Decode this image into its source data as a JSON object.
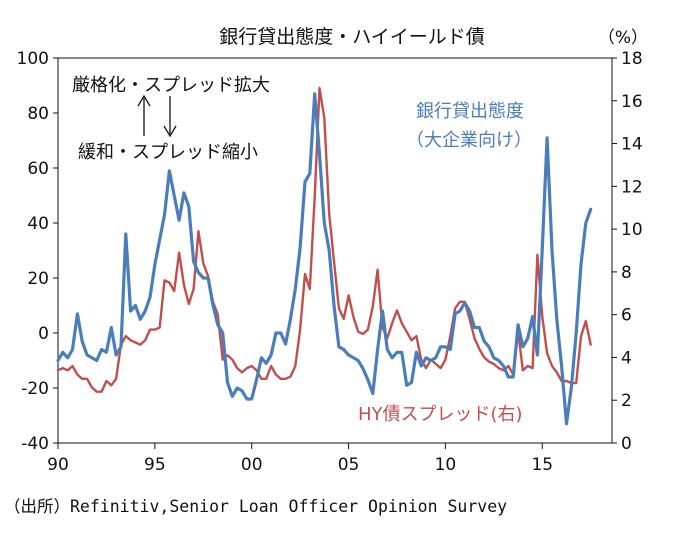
{
  "chart_data": {
    "type": "line",
    "title": "銀行貸出態度・ハイイールド債",
    "right_unit": "（%）",
    "source": "（出所）Refinitiv,Senior Loan Officer Opinion Survey",
    "x_tick_labels": [
      "90",
      "95",
      "00",
      "05",
      "10",
      "15"
    ],
    "x_ticks": [
      1990,
      1995,
      2000,
      2005,
      2010,
      2015
    ],
    "xlim": [
      1990,
      2018.6
    ],
    "y_left": {
      "lim": [
        -40,
        100
      ],
      "ticks": [
        -40,
        -20,
        0,
        20,
        40,
        60,
        80,
        100
      ]
    },
    "y_right": {
      "lim": [
        0,
        18
      ],
      "ticks": [
        0,
        2,
        4,
        6,
        8,
        10,
        12,
        14,
        16,
        18
      ]
    },
    "annotations": {
      "widen": "厳格化・スプレッド拡大",
      "narrow": "緩和・スプレッド縮小",
      "lending_label_line1": "銀行貸出態度",
      "lending_label_line2": "（大企業向け）",
      "spread_label": "HY債スプレッド(右)"
    },
    "series": [
      {
        "name": "銀行貸出態度（大企業向け）",
        "axis": "left",
        "color": "#4a7ebb",
        "points": [
          [
            1990.0,
            -10
          ],
          [
            1990.25,
            -7
          ],
          [
            1990.5,
            -9
          ],
          [
            1990.75,
            -6
          ],
          [
            1991.0,
            7
          ],
          [
            1991.25,
            -3
          ],
          [
            1991.5,
            -8
          ],
          [
            1991.75,
            -9
          ],
          [
            1992.0,
            -10
          ],
          [
            1992.25,
            -6
          ],
          [
            1992.5,
            -7
          ],
          [
            1992.75,
            2
          ],
          [
            1993.0,
            -8
          ],
          [
            1993.25,
            -5
          ],
          [
            1993.5,
            36
          ],
          [
            1993.75,
            8
          ],
          [
            1994.0,
            10
          ],
          [
            1994.25,
            5
          ],
          [
            1994.5,
            8
          ],
          [
            1994.75,
            13
          ],
          [
            1995.0,
            25
          ],
          [
            1995.25,
            34
          ],
          [
            1995.5,
            43
          ],
          [
            1995.75,
            59
          ],
          [
            1996.0,
            50
          ],
          [
            1996.25,
            41
          ],
          [
            1996.5,
            51
          ],
          [
            1996.75,
            46
          ],
          [
            1997.0,
            26
          ],
          [
            1997.25,
            22
          ],
          [
            1997.5,
            20
          ],
          [
            1997.75,
            20
          ],
          [
            1998.0,
            10
          ],
          [
            1998.25,
            3
          ],
          [
            1998.5,
            0
          ],
          [
            1998.75,
            -18
          ],
          [
            1999.0,
            -23
          ],
          [
            1999.25,
            -20
          ],
          [
            1999.5,
            -21
          ],
          [
            1999.75,
            -24
          ],
          [
            2000.0,
            -24
          ],
          [
            2000.25,
            -17
          ],
          [
            2000.5,
            -9
          ],
          [
            2000.75,
            -11
          ],
          [
            2001.0,
            -8
          ],
          [
            2001.25,
            0
          ],
          [
            2001.5,
            0
          ],
          [
            2001.75,
            -4
          ],
          [
            2002.0,
            5
          ],
          [
            2002.25,
            16
          ],
          [
            2002.5,
            31
          ],
          [
            2002.75,
            55
          ],
          [
            2003.0,
            58
          ],
          [
            2003.25,
            87
          ],
          [
            2003.5,
            65
          ],
          [
            2003.75,
            40
          ],
          [
            2004.0,
            30
          ],
          [
            2004.25,
            10
          ],
          [
            2004.5,
            -5
          ],
          [
            2004.75,
            -6
          ],
          [
            2005.0,
            -8
          ],
          [
            2005.25,
            -9
          ],
          [
            2005.5,
            -10
          ],
          [
            2005.75,
            -13
          ],
          [
            2006.0,
            -17
          ],
          [
            2006.25,
            -22
          ],
          [
            2006.5,
            -6
          ],
          [
            2006.75,
            8
          ],
          [
            2007.0,
            -6
          ],
          [
            2007.25,
            -9
          ],
          [
            2007.5,
            -7
          ],
          [
            2007.75,
            -7
          ],
          [
            2008.0,
            -19
          ],
          [
            2008.25,
            -18
          ],
          [
            2008.5,
            -7
          ],
          [
            2008.75,
            -12
          ],
          [
            2009.0,
            -9
          ],
          [
            2009.25,
            -10
          ],
          [
            2009.5,
            -9
          ],
          [
            2009.75,
            -5
          ],
          [
            2010.0,
            -5
          ],
          [
            2010.25,
            -6
          ],
          [
            2010.5,
            7
          ],
          [
            2010.75,
            8
          ],
          [
            2011.0,
            11
          ],
          [
            2011.25,
            8
          ],
          [
            2011.5,
            2
          ],
          [
            2011.75,
            2
          ],
          [
            2012.0,
            -3
          ],
          [
            2012.25,
            -5
          ],
          [
            2012.5,
            -9
          ],
          [
            2012.75,
            -10
          ],
          [
            2013.0,
            -12
          ],
          [
            2013.25,
            -16
          ],
          [
            2013.5,
            -16
          ],
          [
            2013.75,
            3
          ],
          [
            2014.0,
            -5
          ],
          [
            2014.25,
            -2
          ],
          [
            2014.5,
            6
          ],
          [
            2014.75,
            -8
          ],
          [
            2015.0,
            31
          ],
          [
            2015.25,
            71
          ],
          [
            2015.5,
            30
          ],
          [
            2015.75,
            5
          ],
          [
            2016.0,
            -12
          ],
          [
            2016.25,
            -33
          ],
          [
            2016.5,
            -20
          ],
          [
            2016.75,
            0
          ],
          [
            2017.0,
            25
          ],
          [
            2017.25,
            40
          ],
          [
            2017.5,
            45
          ]
        ]
      },
      {
        "name": "HY債スプレッド(右)",
        "axis": "right",
        "color": "#c0504d",
        "points": [
          [
            1990.0,
            3.4
          ],
          [
            1990.25,
            3.5
          ],
          [
            1990.5,
            3.4
          ],
          [
            1990.75,
            3.6
          ],
          [
            1991.0,
            3.2
          ],
          [
            1991.25,
            3.0
          ],
          [
            1991.5,
            3.0
          ],
          [
            1991.75,
            2.6
          ],
          [
            1992.0,
            2.4
          ],
          [
            1992.25,
            2.4
          ],
          [
            1992.5,
            2.9
          ],
          [
            1992.75,
            2.7
          ],
          [
            1993.0,
            3.0
          ],
          [
            1993.25,
            4.6
          ],
          [
            1993.5,
            5.0
          ],
          [
            1993.75,
            4.8
          ],
          [
            1994.0,
            4.7
          ],
          [
            1994.25,
            4.6
          ],
          [
            1994.5,
            4.8
          ],
          [
            1994.75,
            5.3
          ],
          [
            1995.0,
            5.3
          ],
          [
            1995.25,
            5.4
          ],
          [
            1995.5,
            7.6
          ],
          [
            1995.75,
            7.5
          ],
          [
            1996.0,
            7.1
          ],
          [
            1996.25,
            8.9
          ],
          [
            1996.5,
            7.4
          ],
          [
            1996.75,
            6.5
          ],
          [
            1997.0,
            7.2
          ],
          [
            1997.25,
            9.9
          ],
          [
            1997.5,
            8.4
          ],
          [
            1997.75,
            7.8
          ],
          [
            1998.0,
            6.6
          ],
          [
            1998.25,
            6.0
          ],
          [
            1998.5,
            3.9
          ],
          [
            1998.75,
            4.1
          ],
          [
            1999.0,
            3.9
          ],
          [
            1999.25,
            3.5
          ],
          [
            1999.5,
            3.3
          ],
          [
            1999.75,
            3.5
          ],
          [
            2000.0,
            3.6
          ],
          [
            2000.25,
            3.4
          ],
          [
            2000.5,
            3.0
          ],
          [
            2000.75,
            3.0
          ],
          [
            2001.0,
            3.6
          ],
          [
            2001.25,
            3.2
          ],
          [
            2001.5,
            3.0
          ],
          [
            2001.75,
            3.0
          ],
          [
            2002.0,
            3.1
          ],
          [
            2002.25,
            3.6
          ],
          [
            2002.5,
            5.3
          ],
          [
            2002.75,
            7.9
          ],
          [
            2003.0,
            7.2
          ],
          [
            2003.25,
            11.5
          ],
          [
            2003.5,
            16.6
          ],
          [
            2003.75,
            15.2
          ],
          [
            2004.0,
            10.7
          ],
          [
            2004.25,
            8.5
          ],
          [
            2004.5,
            6.3
          ],
          [
            2004.75,
            5.8
          ],
          [
            2005.0,
            6.9
          ],
          [
            2005.25,
            5.9
          ],
          [
            2005.5,
            5.2
          ],
          [
            2005.75,
            5.1
          ],
          [
            2006.0,
            5.3
          ],
          [
            2006.25,
            6.4
          ],
          [
            2006.5,
            8.1
          ],
          [
            2006.75,
            5.4
          ],
          [
            2007.0,
            4.9
          ],
          [
            2007.25,
            5.6
          ],
          [
            2007.5,
            6.2
          ],
          [
            2007.75,
            5.6
          ],
          [
            2008.0,
            5.2
          ],
          [
            2008.25,
            4.8
          ],
          [
            2008.5,
            5.0
          ],
          [
            2008.75,
            3.9
          ],
          [
            2009.0,
            3.5
          ],
          [
            2009.25,
            3.9
          ],
          [
            2009.5,
            3.7
          ],
          [
            2009.75,
            3.5
          ],
          [
            2010.0,
            3.9
          ],
          [
            2010.25,
            5.0
          ],
          [
            2010.5,
            6.3
          ],
          [
            2010.75,
            6.6
          ],
          [
            2011.0,
            6.6
          ],
          [
            2011.25,
            5.8
          ],
          [
            2011.5,
            4.9
          ],
          [
            2011.75,
            4.4
          ],
          [
            2012.0,
            4.0
          ],
          [
            2012.25,
            3.8
          ],
          [
            2012.5,
            3.7
          ],
          [
            2012.75,
            3.5
          ],
          [
            2013.0,
            3.4
          ],
          [
            2013.25,
            3.6
          ],
          [
            2013.5,
            3.2
          ],
          [
            2013.75,
            5.2
          ],
          [
            2014.0,
            3.4
          ],
          [
            2014.25,
            3.6
          ],
          [
            2014.5,
            3.5
          ],
          [
            2014.75,
            8.8
          ],
          [
            2015.0,
            5.9
          ],
          [
            2015.25,
            4.2
          ],
          [
            2015.5,
            3.6
          ],
          [
            2015.75,
            3.3
          ],
          [
            2016.0,
            2.9
          ],
          [
            2016.25,
            2.9
          ],
          [
            2016.5,
            2.8
          ],
          [
            2016.75,
            2.8
          ],
          [
            2017.0,
            5.0
          ],
          [
            2017.25,
            5.7
          ],
          [
            2017.5,
            4.6
          ]
        ]
      }
    ]
  }
}
